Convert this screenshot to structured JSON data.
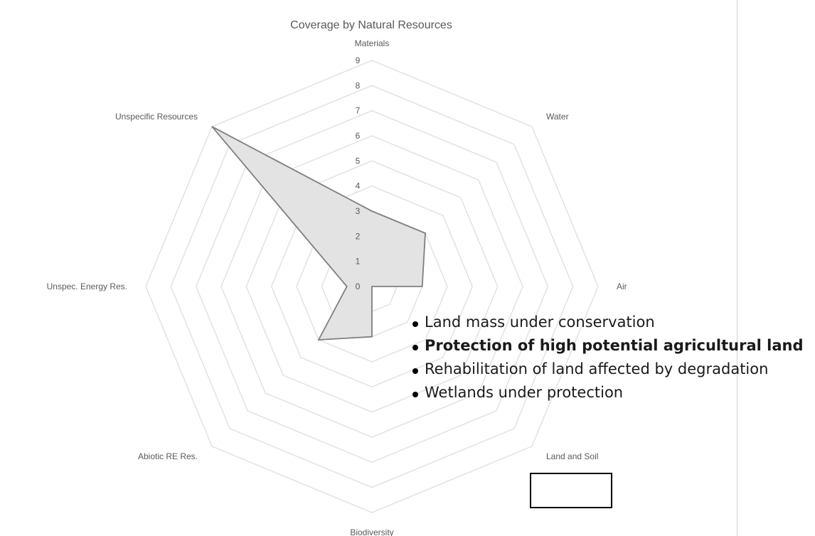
{
  "chart_data": {
    "type": "radar",
    "title": "Coverage by Natural Resources",
    "axes": [
      "Materials",
      "Water",
      "Air",
      "Land and Soil",
      "Biodiversity",
      "Abiotic RE Res.",
      "Unspec. Energy Res.",
      "Unspecific Resources"
    ],
    "ticks": [
      "0",
      "1",
      "2",
      "3",
      "4",
      "5",
      "6",
      "7",
      "8",
      "9"
    ],
    "range": [
      0,
      9
    ],
    "series": [
      {
        "values": [
          3,
          3,
          2,
          0,
          2,
          3,
          1,
          9
        ]
      }
    ],
    "fill_color": "#e3e3e3",
    "line_color": "#7f7f7f",
    "grid_color": "#e0e0e0"
  },
  "annotation": {
    "highlighted_axis": "Land and Soil",
    "bullets": [
      {
        "text": "Land mass under conservation",
        "bold": false
      },
      {
        "text": "Protection of high potential agricultural land",
        "bold": true
      },
      {
        "text": "Rehabilitation of land affected by degradation",
        "bold": false
      },
      {
        "text": "Wetlands under protection",
        "bold": false
      }
    ]
  }
}
